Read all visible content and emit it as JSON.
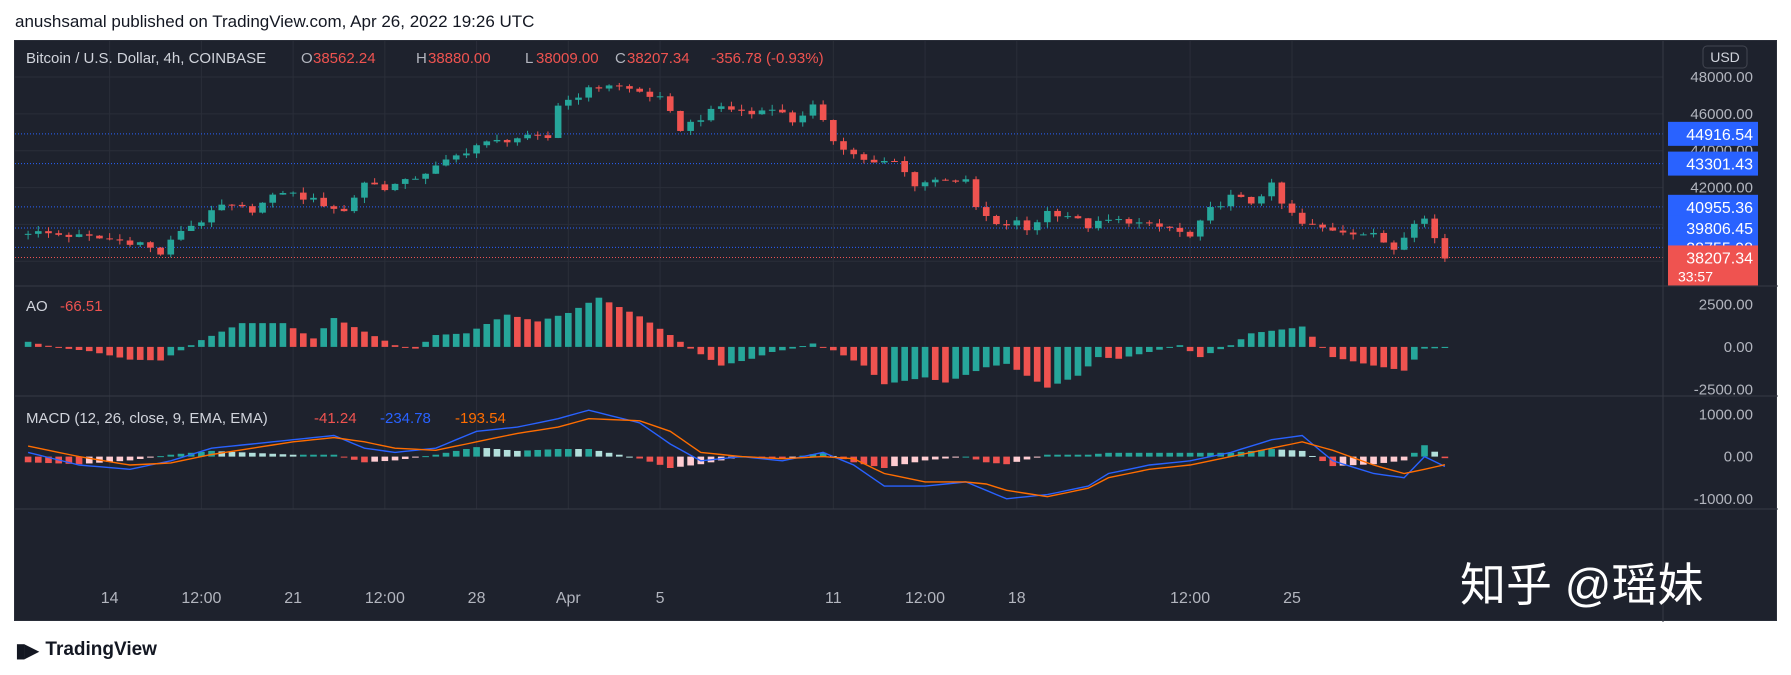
{
  "header": {
    "publisher": "anushsamal published on TradingView.com, Apr 26, 2022 19:26 UTC"
  },
  "footer": {
    "brand": "TradingView",
    "logo_icon": "tradingview-logo-icon"
  },
  "watermark": "知乎 @瑶妹",
  "colors": {
    "background": "#1e222d",
    "up": "#26a69a",
    "down": "#ef5350",
    "text": "#b2b5be",
    "grid": "#2a2e39",
    "level_line": "#2962ff",
    "price_line": "#ef5350",
    "macd": "#2962ff",
    "signal": "#ff6d00",
    "hist_up": "#26a69a",
    "hist_up_light": "#b2dfdb",
    "hist_down": "#ef5350",
    "hist_down_light": "#ffcdd2"
  },
  "chart_data": [
    {
      "type": "candlestick",
      "title": "Bitcoin / U.S. Dollar, 4h, COINBASE",
      "ohlc": {
        "open_prefix": "O",
        "open": "38562.24",
        "high_prefix": "H",
        "high": "38880.00",
        "low_prefix": "L",
        "low": "38009.00",
        "close_prefix": "C",
        "close": "38207.34",
        "change": "-356.78 (-0.93%)"
      },
      "currency": "USD",
      "y_ticks": [
        "48000.00",
        "46000.00",
        "44000.00",
        "42000.00"
      ],
      "ylim": [
        37200,
        48600
      ],
      "x_ticks": [
        "14",
        "12:00",
        "21",
        "12:00",
        "28",
        "Apr",
        "5",
        "11",
        "12:00",
        "18",
        "12:00",
        "25"
      ],
      "level_labels": [
        {
          "label": "44916.54",
          "value": 44916.54
        },
        {
          "label": "43301.43",
          "value": 43301.43
        },
        {
          "label": "40955.36",
          "value": 40955.36
        },
        {
          "label": "39806.45",
          "value": 39806.45
        },
        {
          "label": "38755.98",
          "value": 38755.98
        }
      ],
      "last_price": {
        "label": "38207.34",
        "value": 38207.34,
        "countdown": "33:57"
      },
      "close_path": [
        [
          0,
          39600
        ],
        [
          6,
          39300
        ],
        [
          11,
          39000
        ],
        [
          13,
          38400
        ],
        [
          15,
          39700
        ],
        [
          17,
          40200
        ],
        [
          19,
          41000
        ],
        [
          22,
          40800
        ],
        [
          25,
          41800
        ],
        [
          28,
          41300
        ],
        [
          31,
          40700
        ],
        [
          33,
          42300
        ],
        [
          35,
          42000
        ],
        [
          37,
          42300
        ],
        [
          40,
          43100
        ],
        [
          44,
          44300
        ],
        [
          48,
          44700
        ],
        [
          51,
          44700
        ],
        [
          52,
          46500
        ],
        [
          55,
          47300
        ],
        [
          57,
          47600
        ],
        [
          60,
          47200
        ],
        [
          62,
          46800
        ],
        [
          64,
          45200
        ],
        [
          66,
          45800
        ],
        [
          68,
          46400
        ],
        [
          71,
          46000
        ],
        [
          73,
          46400
        ],
        [
          75,
          45600
        ],
        [
          77,
          46400
        ],
        [
          79,
          44600
        ],
        [
          81,
          43800
        ],
        [
          83,
          43300
        ],
        [
          85,
          43400
        ],
        [
          87,
          42200
        ],
        [
          90,
          42500
        ],
        [
          92,
          42300
        ],
        [
          93,
          40900
        ],
        [
          95,
          39900
        ],
        [
          97,
          40100
        ],
        [
          98,
          39700
        ],
        [
          100,
          40700
        ],
        [
          102,
          40500
        ],
        [
          104,
          39900
        ],
        [
          106,
          40200
        ],
        [
          108,
          40200
        ],
        [
          110,
          39900
        ],
        [
          112,
          39800
        ],
        [
          114,
          39300
        ],
        [
          116,
          40800
        ],
        [
          118,
          41500
        ],
        [
          120,
          41200
        ],
        [
          122,
          42100
        ],
        [
          123,
          41100
        ],
        [
          125,
          40000
        ],
        [
          127,
          39800
        ],
        [
          130,
          39600
        ],
        [
          132,
          39400
        ],
        [
          134,
          38700
        ],
        [
          136,
          40200
        ],
        [
          137,
          40300
        ],
        [
          139,
          38200
        ]
      ],
      "candle_count": 140
    },
    {
      "type": "bar",
      "indicator": "AO",
      "current_value": "-66.51",
      "y_ticks": [
        "2500.00",
        "0.00",
        "-2500.00"
      ],
      "ylim": [
        -2600,
        3000
      ],
      "ao_path": [
        [
          0,
          300
        ],
        [
          3,
          -50
        ],
        [
          6,
          -250
        ],
        [
          10,
          -750
        ],
        [
          13,
          -800
        ],
        [
          17,
          400
        ],
        [
          21,
          1400
        ],
        [
          25,
          1400
        ],
        [
          28,
          500
        ],
        [
          30,
          1700
        ],
        [
          33,
          900
        ],
        [
          36,
          100
        ],
        [
          38,
          -100
        ],
        [
          40,
          700
        ],
        [
          43,
          800
        ],
        [
          47,
          1900
        ],
        [
          50,
          1500
        ],
        [
          53,
          2000
        ],
        [
          56,
          2900
        ],
        [
          60,
          1800
        ],
        [
          63,
          700
        ],
        [
          65,
          -100
        ],
        [
          68,
          -1100
        ],
        [
          71,
          -700
        ],
        [
          73,
          -300
        ],
        [
          75,
          -100
        ],
        [
          77,
          200
        ],
        [
          79,
          -200
        ],
        [
          82,
          -1100
        ],
        [
          84,
          -2200
        ],
        [
          88,
          -1800
        ],
        [
          90,
          -2100
        ],
        [
          94,
          -1200
        ],
        [
          96,
          -1000
        ],
        [
          100,
          -2400
        ],
        [
          103,
          -1700
        ],
        [
          105,
          -600
        ],
        [
          107,
          -700
        ],
        [
          110,
          -300
        ],
        [
          113,
          100
        ],
        [
          115,
          -600
        ],
        [
          118,
          100
        ],
        [
          120,
          800
        ],
        [
          124,
          1100
        ],
        [
          125,
          1200
        ],
        [
          128,
          -600
        ],
        [
          132,
          -1100
        ],
        [
          135,
          -1400
        ],
        [
          137,
          -100
        ],
        [
          139,
          -66
        ]
      ]
    },
    {
      "type": "line",
      "indicator": "MACD",
      "settings": "MACD (12, 26, close, 9, EMA, EMA)",
      "values": {
        "histogram": "-41.24",
        "macd": "-234.78",
        "signal": "-193.54"
      },
      "y_ticks": [
        "1000.00",
        "0.00",
        "-1000.00"
      ],
      "ylim": [
        -1100,
        1200
      ],
      "macd_path": [
        [
          0,
          100
        ],
        [
          5,
          -200
        ],
        [
          10,
          -300
        ],
        [
          14,
          -100
        ],
        [
          18,
          200
        ],
        [
          22,
          300
        ],
        [
          26,
          400
        ],
        [
          30,
          500
        ],
        [
          33,
          200
        ],
        [
          36,
          100
        ],
        [
          40,
          200
        ],
        [
          44,
          600
        ],
        [
          48,
          700
        ],
        [
          52,
          900
        ],
        [
          55,
          1100
        ],
        [
          60,
          800
        ],
        [
          63,
          300
        ],
        [
          66,
          -100
        ],
        [
          70,
          0
        ],
        [
          74,
          -100
        ],
        [
          78,
          100
        ],
        [
          81,
          -200
        ],
        [
          84,
          -700
        ],
        [
          88,
          -700
        ],
        [
          92,
          -600
        ],
        [
          94,
          -800
        ],
        [
          96,
          -1000
        ],
        [
          100,
          -900
        ],
        [
          104,
          -700
        ],
        [
          106,
          -400
        ],
        [
          110,
          -200
        ],
        [
          114,
          -100
        ],
        [
          118,
          100
        ],
        [
          122,
          400
        ],
        [
          125,
          500
        ],
        [
          128,
          -100
        ],
        [
          132,
          -400
        ],
        [
          135,
          -500
        ],
        [
          137,
          0
        ],
        [
          139,
          -234
        ]
      ],
      "signal_path": [
        [
          0,
          250
        ],
        [
          5,
          0
        ],
        [
          10,
          -200
        ],
        [
          14,
          -150
        ],
        [
          18,
          50
        ],
        [
          22,
          200
        ],
        [
          26,
          350
        ],
        [
          30,
          450
        ],
        [
          33,
          350
        ],
        [
          36,
          200
        ],
        [
          40,
          150
        ],
        [
          44,
          350
        ],
        [
          48,
          550
        ],
        [
          52,
          700
        ],
        [
          55,
          900
        ],
        [
          60,
          850
        ],
        [
          63,
          600
        ],
        [
          66,
          100
        ],
        [
          70,
          0
        ],
        [
          74,
          -50
        ],
        [
          78,
          0
        ],
        [
          81,
          -50
        ],
        [
          84,
          -400
        ],
        [
          88,
          -600
        ],
        [
          92,
          -600
        ],
        [
          94,
          -650
        ],
        [
          96,
          -800
        ],
        [
          100,
          -950
        ],
        [
          104,
          -750
        ],
        [
          106,
          -500
        ],
        [
          110,
          -300
        ],
        [
          114,
          -200
        ],
        [
          118,
          0
        ],
        [
          122,
          200
        ],
        [
          125,
          350
        ],
        [
          128,
          150
        ],
        [
          132,
          -200
        ],
        [
          135,
          -400
        ],
        [
          137,
          -300
        ],
        [
          139,
          -193
        ]
      ]
    }
  ]
}
